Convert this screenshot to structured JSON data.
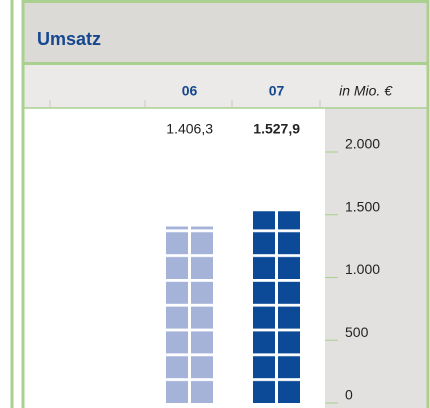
{
  "chart_data": {
    "type": "bar",
    "title": "Umsatz",
    "unit_label": "in Mio. €",
    "categories": [
      "06",
      "07"
    ],
    "values": [
      1406.3,
      1527.9
    ],
    "value_labels": [
      "1.406,3",
      "1.527,9"
    ],
    "colors": [
      "#a6b3d9",
      "#0c4a97"
    ],
    "ylim": [
      0,
      2000
    ],
    "yticks": [
      0,
      500,
      {
        "value": 1000,
        "label": "1.000"
      },
      {
        "value": 1500,
        "label": "1.500"
      },
      {
        "value": 2000,
        "label": "2.000"
      }
    ]
  }
}
